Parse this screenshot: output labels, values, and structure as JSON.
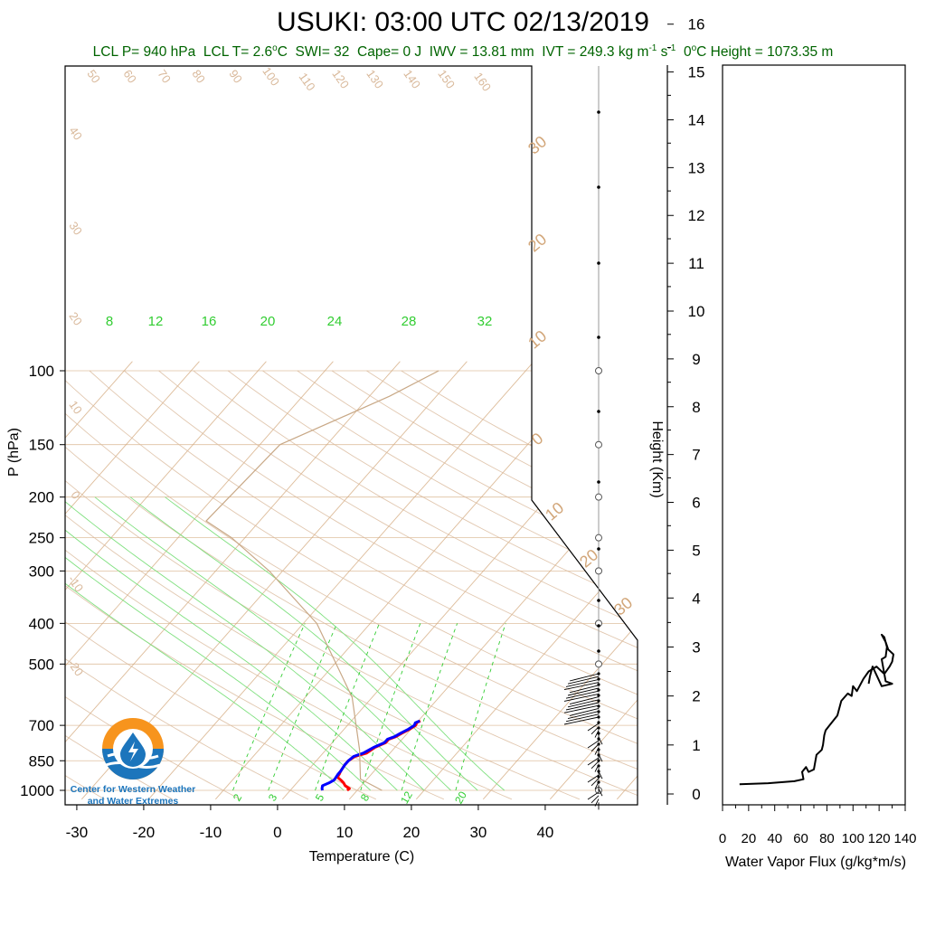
{
  "title": "USUKI: 03:00 UTC 02/13/2019",
  "stats": {
    "lcl_p": "LCL P= 940 hPa",
    "lcl_t_pre": "LCL T= 2.6",
    "lcl_t_unit": "C",
    "swi": "SWI= 32",
    "cape": "Cape= 0 J",
    "iwv": "IWV = 13.81 mm",
    "ivt_pre": "IVT = 249.3 kg m",
    "ivt_exp1": "-1",
    "ivt_mid": " s",
    "ivt_exp2": "-1",
    "zero_pre": "0",
    "zero_post": "C Height = 1073.35 m"
  },
  "logo": {
    "line1": "Center for Western Weather",
    "line2": "and Water Extremes"
  },
  "colors": {
    "dry_adiabat": "#d9b99b",
    "isotherm": "#d2a679",
    "mixing_ratio": "#32cd32",
    "moist_adiabat": "#7fe07f",
    "temperature": "#ff0000",
    "dewpoint": "#0000ff",
    "stats_text": "#006400",
    "logo_orange": "#f7941d",
    "logo_blue": "#1c75bc"
  },
  "chart_data": [
    {
      "type": "line",
      "subtype": "skew-t",
      "xlabel": "Temperature (C)",
      "ylabel": "P (hPa)",
      "y2label": "Height (Km)",
      "x_ticks": [
        -30,
        -20,
        -10,
        0,
        10,
        20,
        30,
        40
      ],
      "y_ticks": [
        100,
        150,
        200,
        250,
        300,
        400,
        500,
        700,
        850,
        1000
      ],
      "height_ticks": [
        0,
        1,
        2,
        3,
        4,
        5,
        6,
        7,
        8,
        9,
        10,
        11,
        12,
        13,
        14,
        15,
        16
      ],
      "dry_adiabat_labels": [
        "50",
        "60",
        "70",
        "80",
        "90",
        "100",
        "110",
        "120",
        "130",
        "140",
        "150",
        "160",
        "40",
        "30",
        "20",
        "10",
        "0",
        "-10",
        "-20"
      ],
      "isotherm_labels": [
        "30",
        "20",
        "10",
        "0",
        "10",
        "20",
        "30"
      ],
      "mixing_ratio_labels_top": [
        "8",
        "12",
        "16",
        "20",
        "24",
        "28",
        "32"
      ],
      "mixing_ratio_labels_bottom": [
        "2",
        "3",
        "5",
        "8",
        "12",
        "20"
      ],
      "series": [
        {
          "kind": "temperature",
          "points": [
            [
              1000,
              8.5
            ],
            [
              990,
              8.6
            ],
            [
              975,
              7.6
            ],
            [
              960,
              7.0
            ],
            [
              945,
              6.2
            ],
            [
              930,
              5.3
            ],
            [
              915,
              5.2
            ],
            [
              900,
              5.0
            ],
            [
              870,
              4.8
            ],
            [
              850,
              4.8
            ],
            [
              830,
              5.2
            ],
            [
              815,
              6.5
            ],
            [
              800,
              6.8
            ],
            [
              790,
              7.0
            ],
            [
              770,
              8.0
            ],
            [
              755,
              8.0
            ],
            [
              745,
              8.7
            ],
            [
              730,
              9.2
            ],
            [
              715,
              9.8
            ],
            [
              700,
              10.2
            ],
            [
              690,
              10.0
            ],
            [
              683,
              10.3
            ]
          ]
        },
        {
          "kind": "dewpoint",
          "points": [
            [
              1000,
              4.8
            ],
            [
              990,
              4.5
            ],
            [
              975,
              4.2
            ],
            [
              960,
              4.8
            ],
            [
              945,
              5.2
            ],
            [
              930,
              5.1
            ],
            [
              915,
              5.0
            ],
            [
              900,
              5.0
            ],
            [
              870,
              4.8
            ],
            [
              850,
              4.8
            ],
            [
              830,
              5.0
            ],
            [
              815,
              6.0
            ],
            [
              800,
              6.5
            ],
            [
              790,
              6.8
            ],
            [
              770,
              7.8
            ],
            [
              755,
              7.8
            ],
            [
              745,
              8.5
            ],
            [
              730,
              9.0
            ],
            [
              715,
              9.6
            ],
            [
              700,
              10.0
            ],
            [
              690,
              9.8
            ],
            [
              683,
              10.2
            ]
          ]
        },
        {
          "kind": "parcel",
          "points": [
            [
              1000,
              13.7
            ],
            [
              940,
              9.0
            ],
            [
              800,
              5.0
            ],
            [
              600,
              -3.0
            ],
            [
              400,
              -18.0
            ],
            [
              300,
              -32.0
            ],
            [
              250,
              -42.0
            ],
            [
              228,
              -48.0
            ],
            [
              150,
              -47.0
            ],
            [
              115,
              -37.0
            ],
            [
              100,
              -33.0
            ]
          ]
        }
      ]
    },
    {
      "type": "line",
      "xlabel": "Water Vapor Flux (g/kg*m/s)",
      "x_ticks": [
        0,
        20,
        40,
        60,
        80,
        100,
        120,
        140
      ],
      "xlim": [
        0,
        140
      ],
      "ylim": [
        0,
        16.5
      ],
      "series": [
        {
          "name": "",
          "points": [
            [
              13,
              0.2
            ],
            [
              35,
              0.22
            ],
            [
              55,
              0.26
            ],
            [
              62,
              0.3
            ],
            [
              61,
              0.45
            ],
            [
              64,
              0.55
            ],
            [
              66,
              0.45
            ],
            [
              70,
              0.5
            ],
            [
              72,
              0.8
            ],
            [
              76,
              0.9
            ],
            [
              77,
              1.0
            ],
            [
              78,
              1.2
            ],
            [
              79,
              1.3
            ],
            [
              82,
              1.4
            ],
            [
              88,
              1.6
            ],
            [
              91,
              1.9
            ],
            [
              96,
              2.05
            ],
            [
              99,
              2.0
            ],
            [
              100,
              2.2
            ],
            [
              103,
              2.1
            ],
            [
              108,
              2.35
            ],
            [
              112,
              2.5
            ],
            [
              118,
              2.6
            ],
            [
              124,
              2.45
            ],
            [
              128,
              2.6
            ],
            [
              130,
              2.7
            ],
            [
              131,
              2.85
            ],
            [
              127,
              2.95
            ],
            [
              125,
              3.1
            ],
            [
              122,
              3.25
            ],
            [
              124,
              3.2
            ],
            [
              126,
              3.0
            ],
            [
              125,
              2.8
            ],
            [
              122,
              2.75
            ],
            [
              125,
              2.3
            ],
            [
              130,
              2.25
            ],
            [
              122,
              2.2
            ],
            [
              115,
              2.6
            ],
            [
              113,
              2.4
            ],
            [
              112,
              2.25
            ]
          ]
        }
      ]
    }
  ]
}
